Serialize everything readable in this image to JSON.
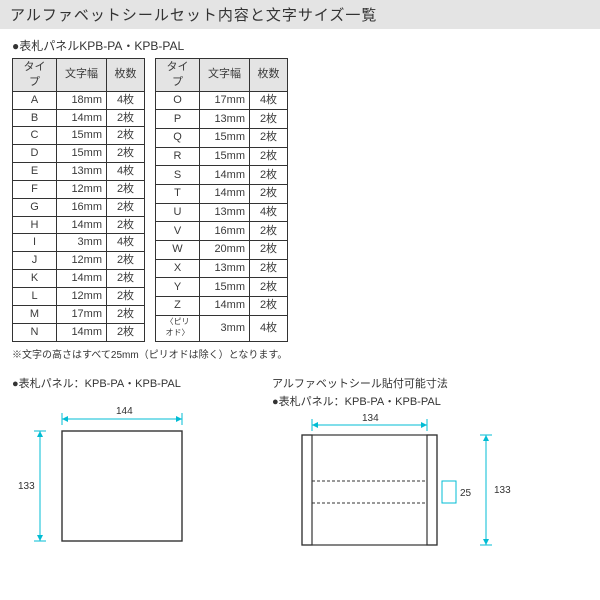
{
  "title": "アルファベットシールセット内容と文字サイズ一覧",
  "subhead": "●表札パネルKPB-PA・KPB-PAL",
  "headers": {
    "type": "タイプ",
    "width": "文字幅",
    "count": "枚数"
  },
  "left": [
    {
      "t": "A",
      "w": "18mm",
      "c": "4枚"
    },
    {
      "t": "B",
      "w": "14mm",
      "c": "2枚"
    },
    {
      "t": "C",
      "w": "15mm",
      "c": "2枚"
    },
    {
      "t": "D",
      "w": "15mm",
      "c": "2枚"
    },
    {
      "t": "E",
      "w": "13mm",
      "c": "4枚"
    },
    {
      "t": "F",
      "w": "12mm",
      "c": "2枚"
    },
    {
      "t": "G",
      "w": "16mm",
      "c": "2枚"
    },
    {
      "t": "H",
      "w": "14mm",
      "c": "2枚"
    },
    {
      "t": "I",
      "w": "3mm",
      "c": "4枚"
    },
    {
      "t": "J",
      "w": "12mm",
      "c": "2枚"
    },
    {
      "t": "K",
      "w": "14mm",
      "c": "2枚"
    },
    {
      "t": "L",
      "w": "12mm",
      "c": "2枚"
    },
    {
      "t": "M",
      "w": "17mm",
      "c": "2枚"
    },
    {
      "t": "N",
      "w": "14mm",
      "c": "2枚"
    }
  ],
  "right": [
    {
      "t": "O",
      "w": "17mm",
      "c": "4枚"
    },
    {
      "t": "P",
      "w": "13mm",
      "c": "2枚"
    },
    {
      "t": "Q",
      "w": "15mm",
      "c": "2枚"
    },
    {
      "t": "R",
      "w": "15mm",
      "c": "2枚"
    },
    {
      "t": "S",
      "w": "14mm",
      "c": "2枚"
    },
    {
      "t": "T",
      "w": "14mm",
      "c": "2枚"
    },
    {
      "t": "U",
      "w": "13mm",
      "c": "4枚"
    },
    {
      "t": "V",
      "w": "16mm",
      "c": "2枚"
    },
    {
      "t": "W",
      "w": "20mm",
      "c": "2枚"
    },
    {
      "t": "X",
      "w": "13mm",
      "c": "2枚"
    },
    {
      "t": "Y",
      "w": "15mm",
      "c": "2枚"
    },
    {
      "t": "Z",
      "w": "14mm",
      "c": "2枚"
    },
    {
      "t": "〈ピリオド〉",
      "w": "3mm",
      "c": "4枚",
      "period": true
    }
  ],
  "note": "※文字の高さはすべて25mm（ピリオドは除く）となります。",
  "diag_left_label": "●表札パネル：KPB-PA・KPB-PAL",
  "diag_right_label1": "アルファベットシール貼付可能寸法",
  "diag_right_label2": "●表札パネル：KPB-PA・KPB-PAL",
  "dim": {
    "w1": "144",
    "h1": "133",
    "w2": "134",
    "h2": "133",
    "h3": "25"
  },
  "colors": {
    "cyan": "#00bcd4",
    "line": "#333333"
  }
}
